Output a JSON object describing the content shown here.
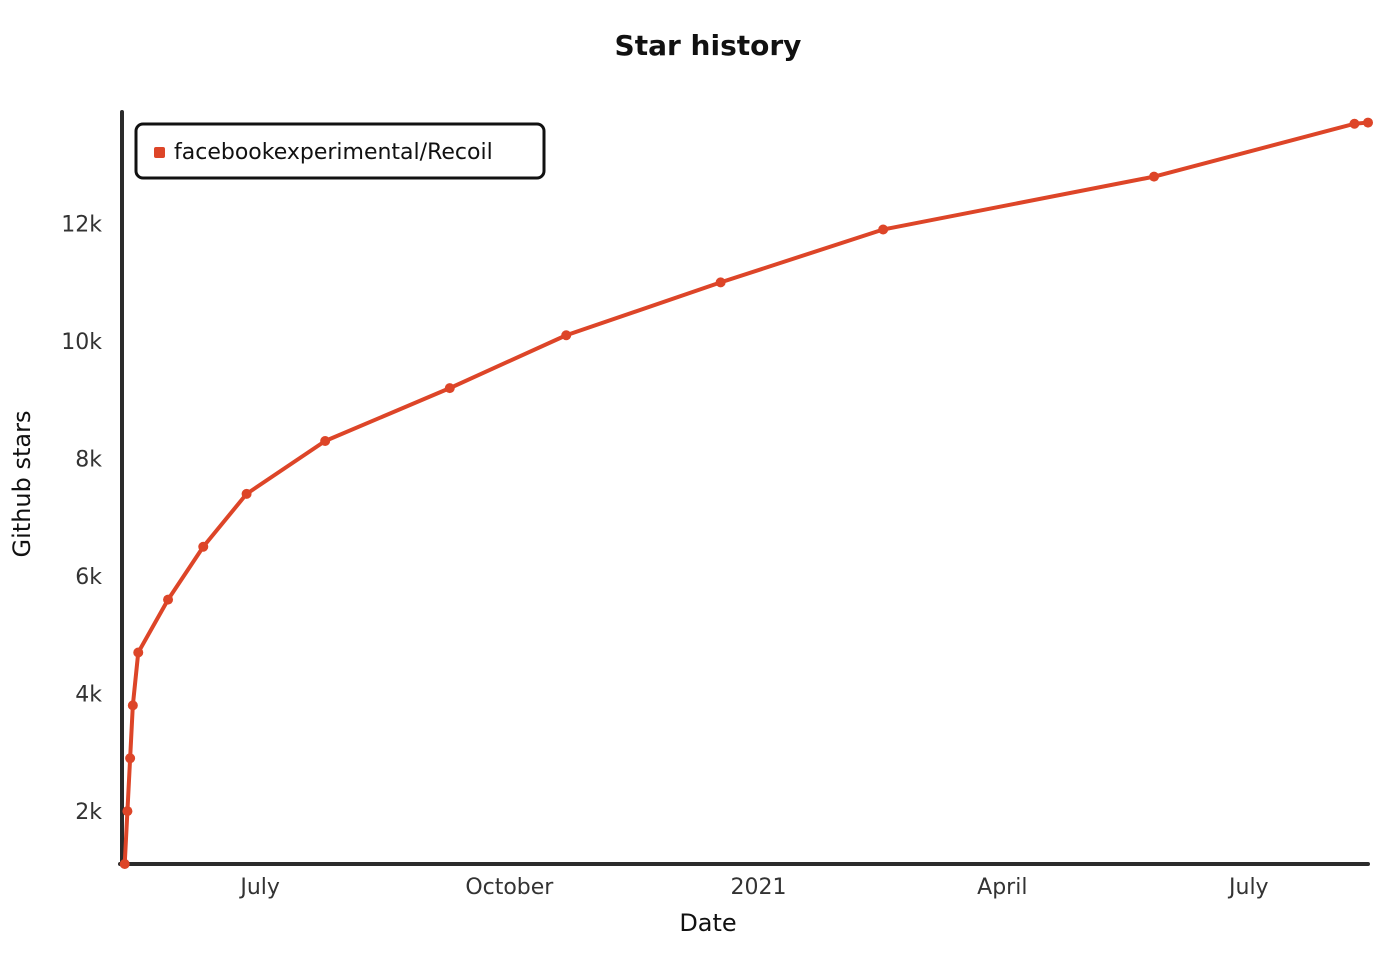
{
  "chart_data": {
    "type": "line",
    "title": "Star history",
    "xlabel": "Date",
    "ylabel": "Github stars",
    "x_ticks": [
      {
        "label": "July",
        "date": "2020-07-01"
      },
      {
        "label": "October",
        "date": "2020-10-01"
      },
      {
        "label": "2021",
        "date": "2021-01-01"
      },
      {
        "label": "April",
        "date": "2021-04-01"
      },
      {
        "label": "July",
        "date": "2021-07-01"
      }
    ],
    "y_ticks": [
      {
        "label": "2k",
        "value": 2000
      },
      {
        "label": "4k",
        "value": 4000
      },
      {
        "label": "6k",
        "value": 6000
      },
      {
        "label": "8k",
        "value": 8000
      },
      {
        "label": "10k",
        "value": 10000
      },
      {
        "label": "12k",
        "value": 12000
      }
    ],
    "xlim": [
      "2020-05-11",
      "2021-08-14"
    ],
    "ylim": [
      1100,
      13900
    ],
    "grid": false,
    "legend_position": "top-left",
    "series": [
      {
        "name": "facebookexperimental/Recoil",
        "color": "#dd4528",
        "points": [
          {
            "x": "2020-05-12",
            "y": 1100
          },
          {
            "x": "2020-05-13",
            "y": 2000
          },
          {
            "x": "2020-05-14",
            "y": 2900
          },
          {
            "x": "2020-05-15",
            "y": 3800
          },
          {
            "x": "2020-05-17",
            "y": 4700
          },
          {
            "x": "2020-05-28",
            "y": 5600
          },
          {
            "x": "2020-06-10",
            "y": 6500
          },
          {
            "x": "2020-06-26",
            "y": 7400
          },
          {
            "x": "2020-07-25",
            "y": 8300
          },
          {
            "x": "2020-09-09",
            "y": 9200
          },
          {
            "x": "2020-10-22",
            "y": 10100
          },
          {
            "x": "2020-12-18",
            "y": 11000
          },
          {
            "x": "2021-02-16",
            "y": 11900
          },
          {
            "x": "2021-05-27",
            "y": 12800
          },
          {
            "x": "2021-08-09",
            "y": 13700
          },
          {
            "x": "2021-08-14",
            "y": 13720
          }
        ]
      }
    ]
  }
}
